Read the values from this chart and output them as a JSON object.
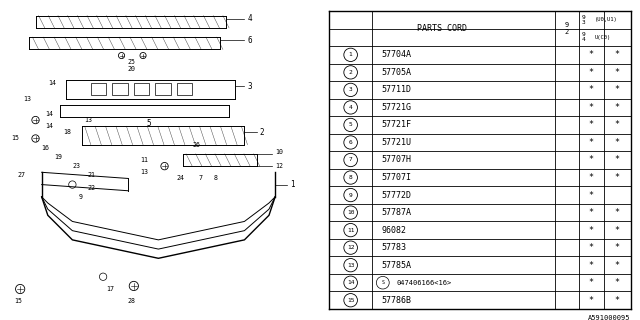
{
  "title": "A591000095",
  "bg_color": "#ffffff",
  "table_header": "PARTS CORD",
  "rows": [
    {
      "num": 1,
      "part": "57704A",
      "c1": "*",
      "c2": "*"
    },
    {
      "num": 2,
      "part": "57705A",
      "c1": "*",
      "c2": "*"
    },
    {
      "num": 3,
      "part": "57711D",
      "c1": "*",
      "c2": "*"
    },
    {
      "num": 4,
      "part": "57721G",
      "c1": "*",
      "c2": "*"
    },
    {
      "num": 5,
      "part": "57721F",
      "c1": "*",
      "c2": "*"
    },
    {
      "num": 6,
      "part": "57721U",
      "c1": "*",
      "c2": "*"
    },
    {
      "num": 7,
      "part": "57707H",
      "c1": "*",
      "c2": "*"
    },
    {
      "num": 8,
      "part": "57707I",
      "c1": "*",
      "c2": "*"
    },
    {
      "num": 9,
      "part": "57772D",
      "c1": "*",
      "c2": ""
    },
    {
      "num": 10,
      "part": "57787A",
      "c1": "*",
      "c2": "*"
    },
    {
      "num": 11,
      "part": "96082",
      "c1": "*",
      "c2": "*"
    },
    {
      "num": 12,
      "part": "57783",
      "c1": "*",
      "c2": "*"
    },
    {
      "num": 13,
      "part": "57785A",
      "c1": "*",
      "c2": "*"
    },
    {
      "num": 14,
      "part": "047406166<16>",
      "c1": "*",
      "c2": "*",
      "circled_s": true
    },
    {
      "num": 15,
      "part": "57786B",
      "c1": "*",
      "c2": "*"
    }
  ],
  "diagram_label": "A591000095",
  "line_color": "#000000"
}
